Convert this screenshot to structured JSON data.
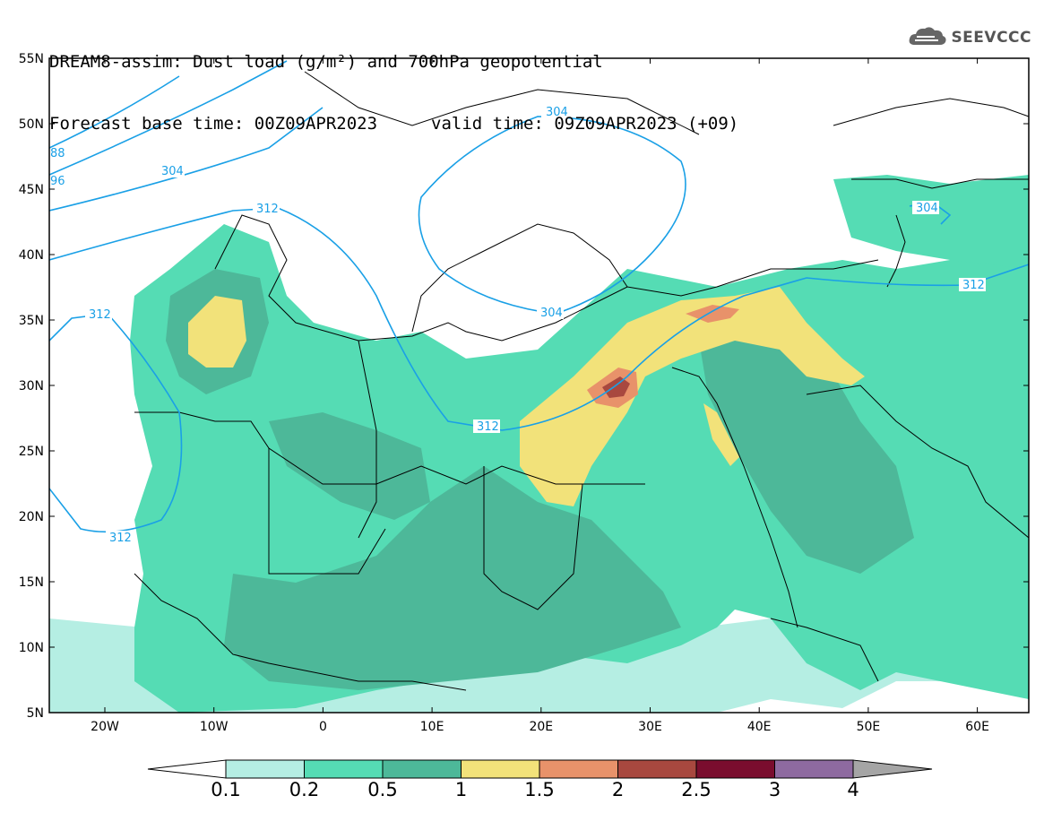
{
  "header": {
    "title_line1": "DREAM8-assim: Dust load (g/m²) and 700hPa geopotential",
    "base_time": "Forecast base time: 00Z09APR2023",
    "valid_time": "valid time: 09Z09APR2023 (+09)"
  },
  "logo": {
    "text": "SEEVCCC",
    "icon": "cloud-icon"
  },
  "map": {
    "lat_ticks": [
      "55N",
      "50N",
      "45N",
      "40N",
      "35N",
      "30N",
      "25N",
      "20N",
      "15N",
      "10N",
      "5N"
    ],
    "lon_ticks": [
      "20W",
      "10W",
      "0",
      "10E",
      "20E",
      "30E",
      "40E",
      "50E",
      "60E"
    ],
    "contour_labels": [
      "304",
      "304",
      "304",
      "304",
      "312",
      "312",
      "312",
      "312",
      "312",
      "88",
      "96"
    ]
  },
  "colorbar": {
    "labels": [
      "0.1",
      "0.2",
      "0.5",
      "1",
      "1.5",
      "2",
      "2.5",
      "3",
      "4"
    ],
    "colors": [
      "#ffffff",
      "#b5eee3",
      "#55dcb4",
      "#4db899",
      "#f2e27a",
      "#e8926a",
      "#a8483f",
      "#7a0d2e",
      "#8e6aa0",
      "#a5a5a5"
    ]
  },
  "colors": {
    "contour": "#1aa0e6",
    "border": "#000000"
  }
}
